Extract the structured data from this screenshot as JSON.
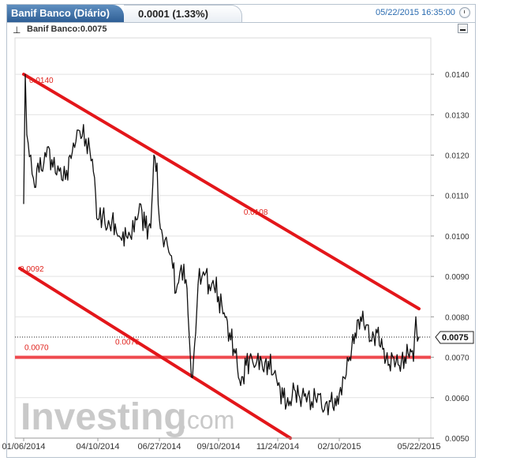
{
  "header": {
    "title": "Banif Banco (Diário)",
    "quote": "0.0001 (1.33%)",
    "timestamp": "05/22/2015 16:35:00",
    "legend": "Banif Banco:0.0075"
  },
  "watermark": {
    "brand": "Investing",
    "suffix": ".com"
  },
  "colors": {
    "trendline": "#e3161a",
    "price_line": "#111111",
    "support": "#ef4a4f",
    "accent": "#2f5f96"
  },
  "chart_data": {
    "type": "line",
    "title": "Banif Banco (Diário)",
    "series": [
      {
        "name": "Banif Banco",
        "x": [
          "2014-01-06",
          "2014-01-08",
          "2014-01-10",
          "2014-01-15",
          "2014-01-20",
          "2014-01-24",
          "2014-01-30",
          "2014-02-05",
          "2014-02-12",
          "2014-02-20",
          "2014-02-28",
          "2014-03-10",
          "2014-03-18",
          "2014-03-26",
          "2014-04-03",
          "2014-04-10",
          "2014-04-16",
          "2014-04-22",
          "2014-04-28",
          "2014-05-02",
          "2014-05-07",
          "2014-05-12",
          "2014-05-16",
          "2014-05-21",
          "2014-05-26",
          "2014-06-02",
          "2014-06-09",
          "2014-06-16",
          "2014-06-20",
          "2014-06-24",
          "2014-06-27",
          "2014-07-01",
          "2014-07-04",
          "2014-07-09",
          "2014-07-14",
          "2014-07-18",
          "2014-07-23",
          "2014-07-28",
          "2014-08-01",
          "2014-08-05",
          "2014-08-08",
          "2014-08-12",
          "2014-08-15",
          "2014-08-20",
          "2014-08-25",
          "2014-08-29",
          "2014-09-03",
          "2014-09-10",
          "2014-09-17",
          "2014-09-24",
          "2014-10-01",
          "2014-10-08",
          "2014-10-15",
          "2014-10-22",
          "2014-10-27",
          "2014-10-30",
          "2014-11-05",
          "2014-11-12",
          "2014-11-19",
          "2014-11-24",
          "2014-12-01",
          "2014-12-08",
          "2014-12-15",
          "2014-12-22",
          "2014-12-29",
          "2015-01-06",
          "2015-01-14",
          "2015-01-22",
          "2015-01-30",
          "2015-02-06",
          "2015-02-10",
          "2015-02-16",
          "2015-02-23",
          "2015-03-02",
          "2015-03-09",
          "2015-03-16",
          "2015-03-23",
          "2015-03-30",
          "2015-04-06",
          "2015-04-13",
          "2015-04-20",
          "2015-04-27",
          "2015-05-04",
          "2015-05-11",
          "2015-05-15",
          "2015-05-18",
          "2015-05-20",
          "2015-05-22"
        ],
        "y": [
          0.0108,
          0.014,
          0.0125,
          0.012,
          0.0112,
          0.0118,
          0.0116,
          0.0122,
          0.0117,
          0.0116,
          0.0114,
          0.0123,
          0.0126,
          0.0124,
          0.0119,
          0.0104,
          0.0105,
          0.0102,
          0.0104,
          0.0103,
          0.01,
          0.0101,
          0.01,
          0.01,
          0.0101,
          0.0108,
          0.0102,
          0.0102,
          0.012,
          0.0118,
          0.0104,
          0.01,
          0.0099,
          0.0096,
          0.0092,
          0.0086,
          0.0091,
          0.0093,
          0.0087,
          0.0071,
          0.0065,
          0.0076,
          0.0088,
          0.009,
          0.0091,
          0.0088,
          0.0089,
          0.0085,
          0.0081,
          0.0076,
          0.0071,
          0.0063,
          0.0068,
          0.007,
          0.0068,
          0.0071,
          0.0067,
          0.0069,
          0.0066,
          0.0063,
          0.006,
          0.0058,
          0.0062,
          0.006,
          0.0061,
          0.0059,
          0.0061,
          0.0057,
          0.0059,
          0.0058,
          0.0061,
          0.0065,
          0.007,
          0.0076,
          0.008,
          0.0078,
          0.0074,
          0.0076,
          0.0072,
          0.0068,
          0.007,
          0.0068,
          0.007,
          0.0072,
          0.0069,
          0.008,
          0.0074,
          0.0075
        ]
      }
    ],
    "y_ticks": [
      "0.0140",
      "0.0130",
      "0.0120",
      "0.0110",
      "0.0100",
      "0.0090",
      "0.0080",
      "0.0070",
      "0.0060",
      "0.0050"
    ],
    "x_ticks": [
      "01/06/2014",
      "04/10/2014",
      "06/27/2014",
      "09/10/2014",
      "11/24/2014",
      "02/10/2015",
      "05/22/2015"
    ],
    "ylim": [
      0.005,
      0.0149
    ],
    "xlim": [
      "2013-12-26",
      "2015-06-06"
    ],
    "last_price": 0.0075,
    "last_price_label": "0.0075",
    "trendlines": [
      {
        "start": [
          "2014-01-06",
          0.014
        ],
        "end": [
          "2015-05-22",
          0.0082
        ],
        "label": "0.0140",
        "label2": "0.0108"
      },
      {
        "start": [
          "2014-01-01",
          0.0092
        ],
        "end": [
          "2014-12-10",
          0.005
        ],
        "label": "0.0092"
      }
    ],
    "support_level": {
      "value": 0.007,
      "label": "0.0070",
      "label2": "0.0076"
    },
    "grid": true
  }
}
